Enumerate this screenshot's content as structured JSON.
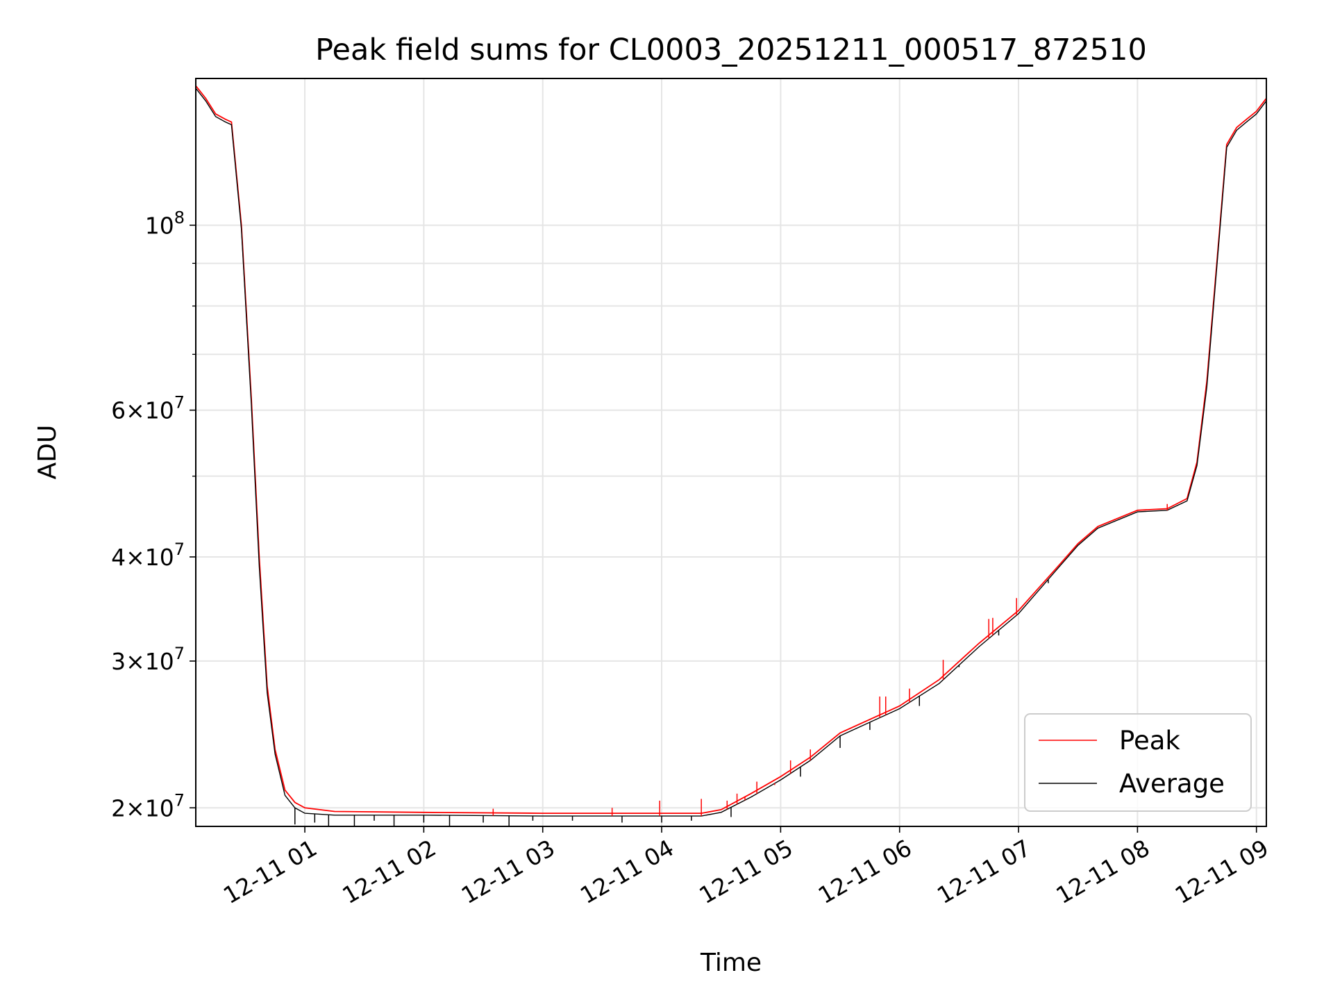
{
  "chart_data": {
    "type": "line",
    "title": "Peak field sums for CL0003_20251211_000517_872510",
    "xlabel": "Time",
    "ylabel": "ADU",
    "yscale": "log",
    "xlim": [
      "2025-12-11 00:05",
      "2025-12-11 09:05"
    ],
    "ylim": [
      19000000,
      150000000
    ],
    "grid": true,
    "legend_position": "lower-right",
    "x_ticks": [
      "12-11 01",
      "12-11 02",
      "12-11 03",
      "12-11 04",
      "12-11 05",
      "12-11 06",
      "12-11 07",
      "12-11 08",
      "12-11 09"
    ],
    "y_ticks": [
      {
        "base": "10",
        "exp": "8",
        "coef": ""
      },
      {
        "base": "10",
        "exp": "7",
        "coef": "6×"
      },
      {
        "base": "10",
        "exp": "7",
        "coef": "4×"
      },
      {
        "base": "10",
        "exp": "7",
        "coef": "3×"
      },
      {
        "base": "10",
        "exp": "7",
        "coef": "2×"
      }
    ],
    "series": [
      {
        "name": "Peak",
        "color": "#ff0000",
        "points": [
          [
            "2025-12-11 00:05",
            147000000
          ],
          [
            "2025-12-11 00:10",
            142000000
          ],
          [
            "2025-12-11 00:15",
            136000000
          ],
          [
            "2025-12-11 00:20",
            134000000
          ],
          [
            "2025-12-11 00:23",
            133000000
          ],
          [
            "2025-12-11 00:28",
            100000000
          ],
          [
            "2025-12-11 00:33",
            62000000
          ],
          [
            "2025-12-11 00:37",
            40000000
          ],
          [
            "2025-12-11 00:41",
            28000000
          ],
          [
            "2025-12-11 00:45",
            23500000
          ],
          [
            "2025-12-11 00:50",
            21000000
          ],
          [
            "2025-12-11 00:55",
            20300000
          ],
          [
            "2025-12-11 01:00",
            20000000
          ],
          [
            "2025-12-11 01:15",
            19800000
          ],
          [
            "2025-12-11 02:00",
            19750000
          ],
          [
            "2025-12-11 03:00",
            19700000
          ],
          [
            "2025-12-11 04:00",
            19700000
          ],
          [
            "2025-12-11 04:20",
            19700000
          ],
          [
            "2025-12-11 04:30",
            19900000
          ],
          [
            "2025-12-11 04:45",
            20800000
          ],
          [
            "2025-12-11 05:00",
            21800000
          ],
          [
            "2025-12-11 05:15",
            23000000
          ],
          [
            "2025-12-11 05:30",
            24600000
          ],
          [
            "2025-12-11 06:00",
            26500000
          ],
          [
            "2025-12-11 06:20",
            28500000
          ],
          [
            "2025-12-11 06:40",
            31500000
          ],
          [
            "2025-12-11 07:00",
            34500000
          ],
          [
            "2025-12-11 07:20",
            39000000
          ],
          [
            "2025-12-11 07:30",
            41500000
          ],
          [
            "2025-12-11 07:40",
            43500000
          ],
          [
            "2025-12-11 08:00",
            45500000
          ],
          [
            "2025-12-11 08:15",
            45700000
          ],
          [
            "2025-12-11 08:25",
            47000000
          ],
          [
            "2025-12-11 08:30",
            52000000
          ],
          [
            "2025-12-11 08:35",
            65000000
          ],
          [
            "2025-12-11 08:40",
            90000000
          ],
          [
            "2025-12-11 08:45",
            125000000
          ],
          [
            "2025-12-11 08:50",
            131000000
          ],
          [
            "2025-12-11 08:55",
            134000000
          ],
          [
            "2025-12-11 09:00",
            137000000
          ],
          [
            "2025-12-11 09:05",
            142000000
          ]
        ]
      },
      {
        "name": "Average",
        "color": "#000000",
        "points": [
          [
            "2025-12-11 00:05",
            146000000
          ],
          [
            "2025-12-11 00:10",
            141000000
          ],
          [
            "2025-12-11 00:15",
            135000000
          ],
          [
            "2025-12-11 00:20",
            133000000
          ],
          [
            "2025-12-11 00:23",
            132000000
          ],
          [
            "2025-12-11 00:28",
            99000000
          ],
          [
            "2025-12-11 00:33",
            61000000
          ],
          [
            "2025-12-11 00:37",
            39000000
          ],
          [
            "2025-12-11 00:41",
            27500000
          ],
          [
            "2025-12-11 00:45",
            23200000
          ],
          [
            "2025-12-11 00:50",
            20700000
          ],
          [
            "2025-12-11 00:55",
            20000000
          ],
          [
            "2025-12-11 01:00",
            19700000
          ],
          [
            "2025-12-11 01:15",
            19600000
          ],
          [
            "2025-12-11 02:00",
            19600000
          ],
          [
            "2025-12-11 03:00",
            19550000
          ],
          [
            "2025-12-11 04:00",
            19550000
          ],
          [
            "2025-12-11 04:20",
            19550000
          ],
          [
            "2025-12-11 04:30",
            19750000
          ],
          [
            "2025-12-11 04:45",
            20600000
          ],
          [
            "2025-12-11 05:00",
            21600000
          ],
          [
            "2025-12-11 05:15",
            22800000
          ],
          [
            "2025-12-11 05:30",
            24400000
          ],
          [
            "2025-12-11 06:00",
            26300000
          ],
          [
            "2025-12-11 06:20",
            28200000
          ],
          [
            "2025-12-11 06:40",
            31200000
          ],
          [
            "2025-12-11 07:00",
            34200000
          ],
          [
            "2025-12-11 07:20",
            38800000
          ],
          [
            "2025-12-11 07:30",
            41300000
          ],
          [
            "2025-12-11 07:40",
            43300000
          ],
          [
            "2025-12-11 08:00",
            45300000
          ],
          [
            "2025-12-11 08:15",
            45500000
          ],
          [
            "2025-12-11 08:25",
            46700000
          ],
          [
            "2025-12-11 08:30",
            51500000
          ],
          [
            "2025-12-11 08:35",
            64000000
          ],
          [
            "2025-12-11 08:40",
            89000000
          ],
          [
            "2025-12-11 08:45",
            124000000
          ],
          [
            "2025-12-11 08:50",
            130000000
          ],
          [
            "2025-12-11 08:55",
            133000000
          ],
          [
            "2025-12-11 09:00",
            136000000
          ],
          [
            "2025-12-11 09:05",
            141000000
          ]
        ]
      }
    ],
    "spikes": [
      {
        "t": "2025-12-11 02:35",
        "v": 19950000
      },
      {
        "t": "2025-12-11 03:35",
        "v": 20000000
      },
      {
        "t": "2025-12-11 03:59",
        "v": 20400000
      },
      {
        "t": "2025-12-11 04:20",
        "v": 20500000
      },
      {
        "t": "2025-12-11 04:33",
        "v": 20400000
      },
      {
        "t": "2025-12-11 04:38",
        "v": 20800000
      },
      {
        "t": "2025-12-11 04:42",
        "v": 20600000
      },
      {
        "t": "2025-12-11 04:48",
        "v": 21500000
      },
      {
        "t": "2025-12-11 04:57",
        "v": 21300000
      },
      {
        "t": "2025-12-11 05:05",
        "v": 22800000
      },
      {
        "t": "2025-12-11 05:15",
        "v": 23500000
      },
      {
        "t": "2025-12-11 05:50",
        "v": 27200000
      },
      {
        "t": "2025-12-11 05:53",
        "v": 27200000
      },
      {
        "t": "2025-12-11 06:05",
        "v": 27800000
      },
      {
        "t": "2025-12-11 06:22",
        "v": 30100000
      },
      {
        "t": "2025-12-11 06:45",
        "v": 33700000
      },
      {
        "t": "2025-12-11 06:47",
        "v": 33800000
      },
      {
        "t": "2025-12-11 06:59",
        "v": 35700000
      },
      {
        "t": "2025-12-11 08:15",
        "v": 46300000
      }
    ],
    "dips": [
      {
        "t": "2025-12-11 00:55",
        "v": 19100000
      },
      {
        "t": "2025-12-11 01:05",
        "v": 19200000
      },
      {
        "t": "2025-12-11 01:12",
        "v": 18900000
      },
      {
        "t": "2025-12-11 01:25",
        "v": 19000000
      },
      {
        "t": "2025-12-11 01:35",
        "v": 19300000
      },
      {
        "t": "2025-12-11 01:45",
        "v": 18900000
      },
      {
        "t": "2025-12-11 02:00",
        "v": 19200000
      },
      {
        "t": "2025-12-11 02:13",
        "v": 18800000
      },
      {
        "t": "2025-12-11 02:30",
        "v": 19200000
      },
      {
        "t": "2025-12-11 02:43",
        "v": 18900000
      },
      {
        "t": "2025-12-11 02:55",
        "v": 19300000
      },
      {
        "t": "2025-12-11 03:15",
        "v": 19300000
      },
      {
        "t": "2025-12-11 03:40",
        "v": 19200000
      },
      {
        "t": "2025-12-11 04:00",
        "v": 19200000
      },
      {
        "t": "2025-12-11 04:15",
        "v": 19300000
      },
      {
        "t": "2025-12-11 04:35",
        "v": 19500000
      },
      {
        "t": "2025-12-11 05:10",
        "v": 21800000
      },
      {
        "t": "2025-12-11 05:30",
        "v": 23600000
      },
      {
        "t": "2025-12-11 05:45",
        "v": 24800000
      },
      {
        "t": "2025-12-11 06:10",
        "v": 26500000
      },
      {
        "t": "2025-12-11 06:30",
        "v": 29500000
      },
      {
        "t": "2025-12-11 06:50",
        "v": 32200000
      },
      {
        "t": "2025-12-11 07:15",
        "v": 37200000
      }
    ]
  }
}
